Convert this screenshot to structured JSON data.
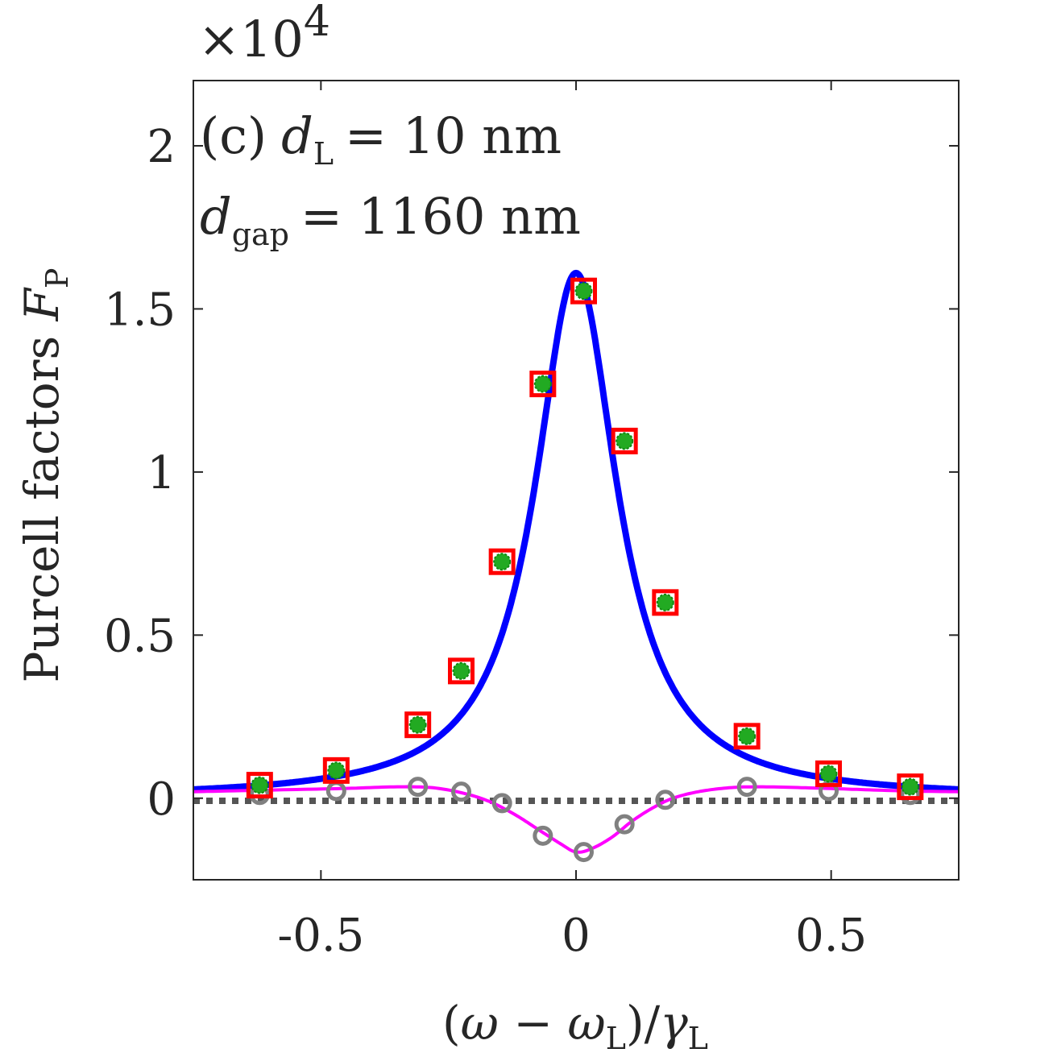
{
  "chart_data": {
    "type": "line",
    "panel": "(c)",
    "annotation": {
      "line1": {
        "panel": "(c)",
        "var": "d",
        "sub": "L",
        "rest": "= 10 nm"
      },
      "line2": {
        "var": "d",
        "sub": "gap",
        "rest": "= 1160 nm"
      }
    },
    "xlabel": {
      "lparen": "(",
      "omega": "ω",
      "minus": " − ",
      "omega2": "ω",
      "sub1": "L",
      "rparen": ")/",
      "gamma": "γ",
      "sub2": "L"
    },
    "ylabel": {
      "text": "Purcell factors ",
      "var": "F",
      "sub": "P"
    },
    "y_exponent": {
      "prefix": "×10",
      "power": "4"
    },
    "xlim": [
      -0.75,
      0.75
    ],
    "ylim": [
      -0.25,
      2.2
    ],
    "x_ticks": [
      -0.5,
      0,
      0.5
    ],
    "x_tick_labels": [
      "-0.5",
      "0",
      "0.5"
    ],
    "y_ticks": [
      0,
      0.5,
      1,
      1.5,
      2
    ],
    "y_tick_labels": [
      "0",
      "0.5",
      "1",
      "1.5",
      "2"
    ],
    "grid": false,
    "series": [
      {
        "name": "total Purcell factor (curve)",
        "style": "line",
        "color": "#0000ff",
        "model": "lorentzian",
        "peak": 1.61,
        "center": 0.0,
        "hwhm": 0.098,
        "baseline": 0.0
      },
      {
        "name": "interference term (curve)",
        "style": "line",
        "color": "#ff00ff",
        "points": [
          [
            -0.75,
            0.02
          ],
          [
            -0.6,
            0.025
          ],
          [
            -0.45,
            0.03
          ],
          [
            -0.35,
            0.035
          ],
          [
            -0.28,
            0.032
          ],
          [
            -0.22,
            0.015
          ],
          [
            -0.17,
            -0.01
          ],
          [
            -0.12,
            -0.05
          ],
          [
            -0.07,
            -0.1
          ],
          [
            -0.03,
            -0.14
          ],
          [
            0.0,
            -0.165
          ],
          [
            0.03,
            -0.155
          ],
          [
            0.07,
            -0.12
          ],
          [
            0.11,
            -0.07
          ],
          [
            0.15,
            -0.03
          ],
          [
            0.19,
            0.0
          ],
          [
            0.24,
            0.02
          ],
          [
            0.3,
            0.032
          ],
          [
            0.36,
            0.035
          ],
          [
            0.45,
            0.032
          ],
          [
            0.55,
            0.027
          ],
          [
            0.65,
            0.022
          ],
          [
            0.75,
            0.02
          ]
        ]
      },
      {
        "name": "reference level (dotted)",
        "style": "dotted",
        "color": "#555555",
        "value": -0.008
      },
      {
        "name": "numerical total (squares)",
        "style": "marker-square",
        "color": "#ff0000",
        "x": [
          -0.62,
          -0.47,
          -0.31,
          -0.225,
          -0.145,
          -0.065,
          0.015,
          0.095,
          0.175,
          0.335,
          0.495,
          0.655
        ],
        "y": [
          0.04,
          0.085,
          0.225,
          0.39,
          0.725,
          1.27,
          1.555,
          1.095,
          0.6,
          0.19,
          0.075,
          0.035
        ]
      },
      {
        "name": "numerical total (green dots)",
        "style": "marker-dot",
        "color": "#22aa22",
        "x": [
          -0.62,
          -0.47,
          -0.31,
          -0.225,
          -0.145,
          -0.065,
          0.015,
          0.095,
          0.175,
          0.335,
          0.495,
          0.655
        ],
        "y": [
          0.04,
          0.085,
          0.225,
          0.39,
          0.725,
          1.27,
          1.555,
          1.095,
          0.6,
          0.19,
          0.075,
          0.035
        ]
      },
      {
        "name": "numerical interference (circles)",
        "style": "marker-circle",
        "color": "#808080",
        "x": [
          -0.62,
          -0.47,
          -0.31,
          -0.225,
          -0.145,
          -0.065,
          0.015,
          0.095,
          0.175,
          0.335,
          0.495,
          0.655
        ],
        "y": [
          0.01,
          0.022,
          0.035,
          0.02,
          -0.015,
          -0.115,
          -0.165,
          -0.08,
          -0.005,
          0.035,
          0.022,
          0.01
        ]
      }
    ]
  }
}
